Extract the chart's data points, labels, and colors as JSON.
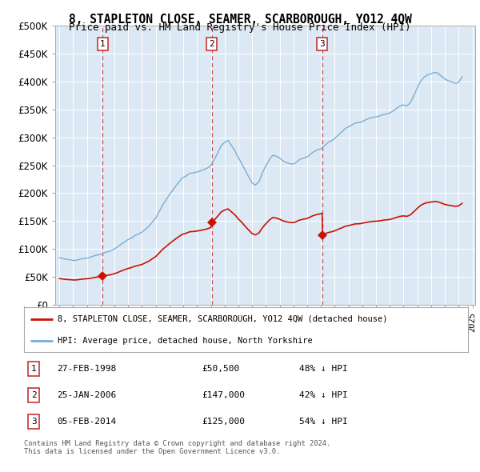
{
  "title": "8, STAPLETON CLOSE, SEAMER, SCARBOROUGH, YO12 4QW",
  "subtitle": "Price paid vs. HM Land Registry's House Price Index (HPI)",
  "plot_bg_color": "#dce9f5",
  "hpi_color": "#7aadd4",
  "price_color": "#cc1100",
  "ylim": [
    0,
    500000
  ],
  "yticks": [
    0,
    50000,
    100000,
    150000,
    200000,
    250000,
    300000,
    350000,
    400000,
    450000,
    500000
  ],
  "transactions": [
    {
      "num": 1,
      "date": "27-FEB-1998",
      "price": 50500,
      "pct": "48% ↓ HPI",
      "year": 1998.15
    },
    {
      "num": 2,
      "date": "25-JAN-2006",
      "price": 147000,
      "pct": "42% ↓ HPI",
      "year": 2006.07
    },
    {
      "num": 3,
      "date": "05-FEB-2014",
      "price": 125000,
      "pct": "54% ↓ HPI",
      "year": 2014.1
    }
  ],
  "footer": "Contains HM Land Registry data © Crown copyright and database right 2024.\nThis data is licensed under the Open Government Licence v3.0.",
  "legend_property": "8, STAPLETON CLOSE, SEAMER, SCARBOROUGH, YO12 4QW (detached house)",
  "legend_hpi": "HPI: Average price, detached house, North Yorkshire"
}
